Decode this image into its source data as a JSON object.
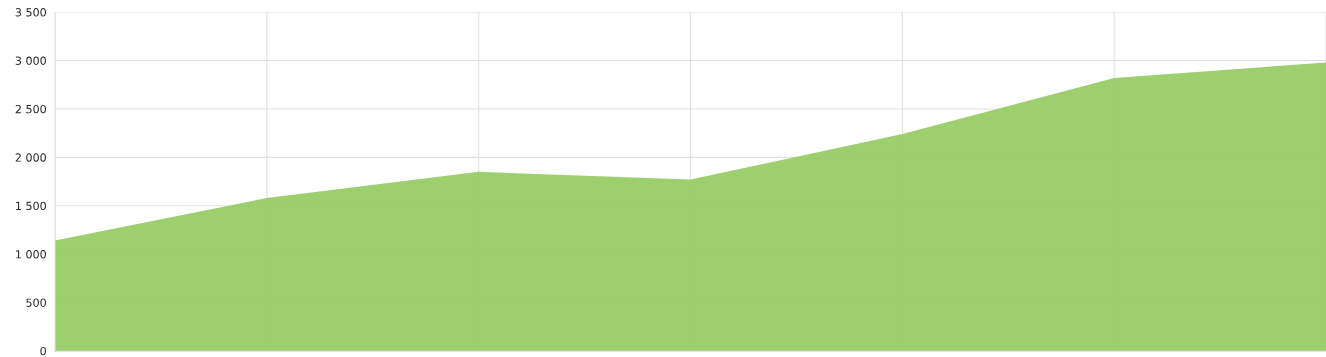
{
  "chart_data": {
    "type": "area",
    "categories": [
      null,
      null,
      null,
      null,
      null,
      null,
      null
    ],
    "series": [
      {
        "color": "#99cc66",
        "values": [
          1140,
          1580,
          1850,
          1770,
          2240,
          2820,
          2980
        ]
      }
    ],
    "ylim": [
      0,
      3500
    ],
    "yticks": [
      0,
      500,
      {
        "value": 1000,
        "label": "1 000"
      },
      {
        "value": 1500,
        "label": "1 500"
      },
      {
        "value": 2000,
        "label": "2 000"
      },
      {
        "value": 2500,
        "label": "2 500"
      },
      {
        "value": 3000,
        "label": "3 000"
      },
      {
        "value": 3500,
        "label": "3 500"
      }
    ],
    "grid": true,
    "tick_labels": "y"
  }
}
